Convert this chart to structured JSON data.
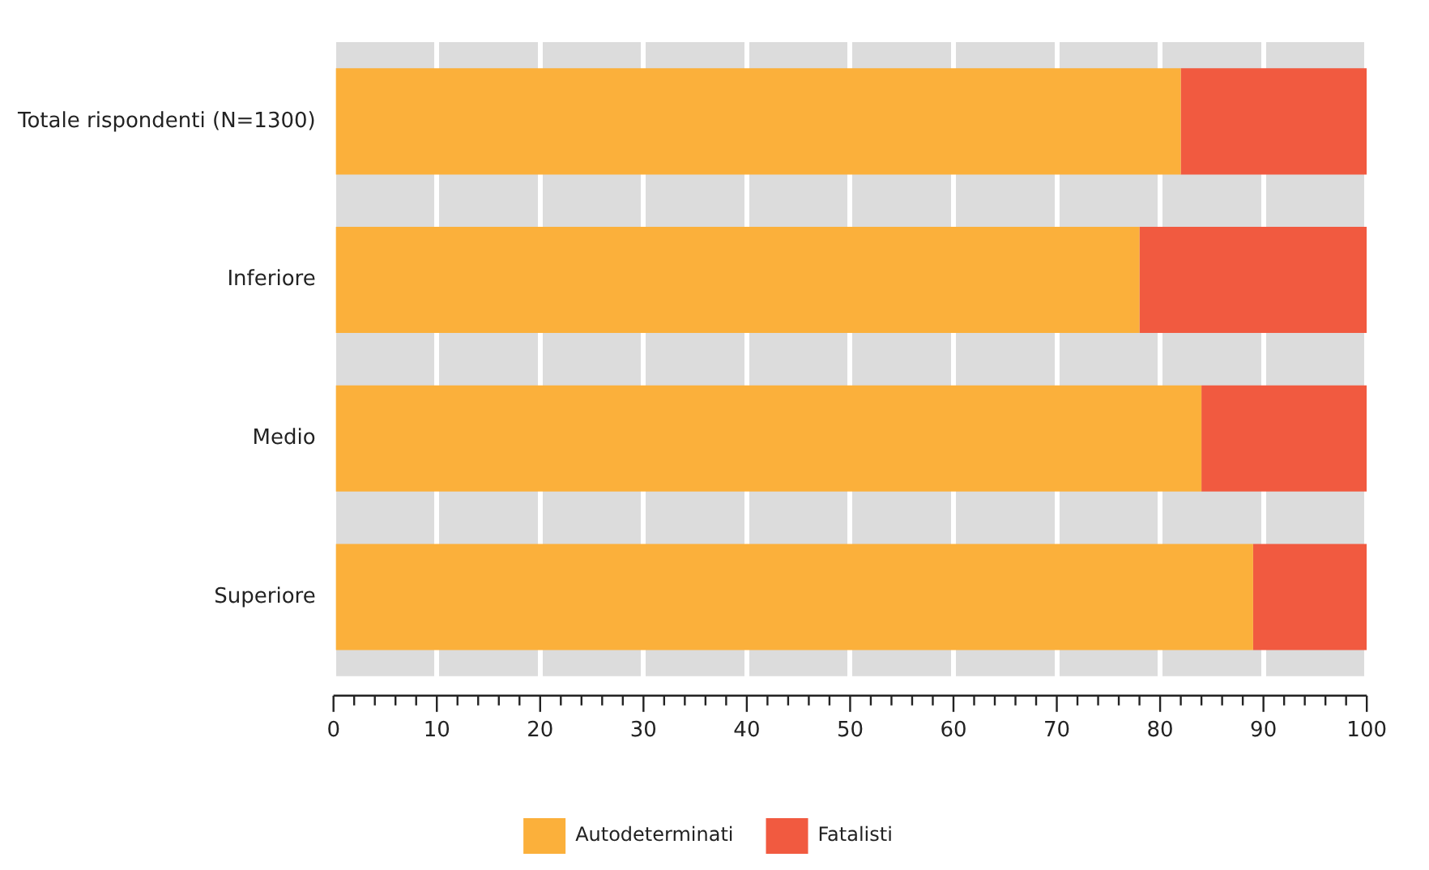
{
  "chart_data": {
    "type": "bar",
    "orientation": "horizontal",
    "stacked": true,
    "categories": [
      "Totale rispondenti (N=1300)",
      "Inferiore",
      "Medio",
      "Superiore"
    ],
    "series": [
      {
        "name": "Autodeterminati",
        "color": "#fbb03b",
        "values": [
          82,
          78,
          84,
          89
        ]
      },
      {
        "name": "Fatalisti",
        "color": "#f15a40",
        "values": [
          18,
          22,
          16,
          11
        ]
      }
    ],
    "xlim": [
      0,
      100
    ],
    "xticks": [
      0,
      {
        "value": 2,
        "label": null
      },
      {
        "value": 4,
        "label": null
      },
      {
        "value": 6,
        "label": null
      },
      {
        "value": 8,
        "label": null
      },
      10,
      {
        "value": 12,
        "label": null
      },
      {
        "value": 14,
        "label": null
      },
      {
        "value": 16,
        "label": null
      },
      {
        "value": 18,
        "label": null
      },
      20,
      {
        "value": 22,
        "label": null
      },
      {
        "value": 24,
        "label": null
      },
      {
        "value": 26,
        "label": null
      },
      {
        "value": 28,
        "label": null
      },
      30,
      {
        "value": 32,
        "label": null
      },
      {
        "value": 34,
        "label": null
      },
      {
        "value": 36,
        "label": null
      },
      {
        "value": 38,
        "label": null
      },
      40,
      {
        "value": 42,
        "label": null
      },
      {
        "value": 44,
        "label": null
      },
      {
        "value": 46,
        "label": null
      },
      {
        "value": 48,
        "label": null
      },
      50,
      {
        "value": 52,
        "label": null
      },
      {
        "value": 54,
        "label": null
      },
      {
        "value": 56,
        "label": null
      },
      {
        "value": 58,
        "label": null
      },
      60,
      {
        "value": 62,
        "label": null
      },
      {
        "value": 64,
        "label": null
      },
      {
        "value": 66,
        "label": null
      },
      {
        "value": 68,
        "label": null
      },
      70,
      {
        "value": 72,
        "label": null
      },
      {
        "value": 74,
        "label": null
      },
      {
        "value": 76,
        "label": null
      },
      {
        "value": 78,
        "label": null
      },
      80,
      {
        "value": 82,
        "label": null
      },
      {
        "value": 84,
        "label": null
      },
      {
        "value": 86,
        "label": null
      },
      {
        "value": 88,
        "label": null
      },
      90,
      {
        "value": 92,
        "label": null
      },
      {
        "value": 94,
        "label": null
      },
      {
        "value": 96,
        "label": null
      },
      {
        "value": 98,
        "label": null
      },
      100
    ],
    "grid": "x",
    "legend": "bottom"
  }
}
